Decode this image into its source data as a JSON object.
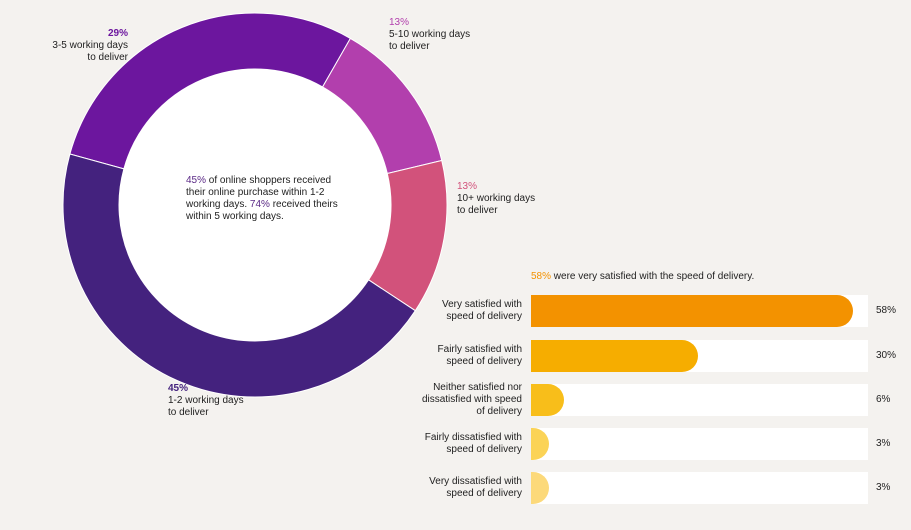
{
  "chart_data": [
    {
      "type": "pie",
      "subtype": "donut",
      "slices": [
        {
          "pct_label": "29%",
          "label": "3-5 working days\nto deliver",
          "value": 29,
          "color": "#6c169e"
        },
        {
          "pct_label": "13%",
          "label": "5-10 working days\nto deliver",
          "value": 13,
          "color": "#b23fad"
        },
        {
          "pct_label": "13%",
          "label": "10+ working days\nto deliver",
          "value": 13,
          "color": "#d2527b"
        },
        {
          "pct_label": "45%",
          "label": "1-2 working days\nto deliver",
          "value": 45,
          "color": "#44227e"
        }
      ],
      "center_note": {
        "pct1": "45%",
        "text1": " of online shoppers received their online purchase within 1-2 working days. ",
        "pct2": "74%",
        "text2": " received theirs within 5 working days."
      }
    },
    {
      "type": "bar",
      "orientation": "horizontal",
      "note": {
        "pct": "58%",
        "text": " were very satisfied with the speed of delivery."
      },
      "xlim": [
        0,
        60
      ],
      "bars": [
        {
          "category": "Very satisfied with\nspeed of delivery",
          "value": 58,
          "value_label": "58%",
          "color": "#f39200"
        },
        {
          "category": "Fairly satisfied with\nspeed of delivery",
          "value": 30,
          "value_label": "30%",
          "color": "#f6ad00"
        },
        {
          "category": "Neither satisfied nor\ndissatisfied with speed\nof delivery",
          "value": 6,
          "value_label": "6%",
          "color": "#f8be1a"
        },
        {
          "category": "Fairly dissatisfied with\nspeed of delivery",
          "value": 3,
          "value_label": "3%",
          "color": "#fbd356"
        },
        {
          "category": "Very dissatisfied with\nspeed of delivery",
          "value": 3,
          "value_label": "3%",
          "color": "#fcd97a"
        }
      ]
    }
  ]
}
